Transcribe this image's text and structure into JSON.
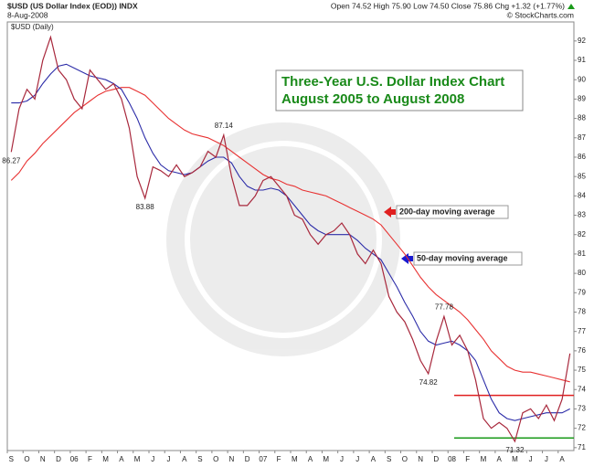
{
  "chart_data": {
    "type": "line",
    "header": {
      "symbol": "$USD (US Dollar Index (EOD)) INDX",
      "date": "8-Aug-2008",
      "quote": "Open 74.52  High 75.90  Low 74.50  Close 75.86  Chg +1.32 (+1.77%)",
      "credit": "© StockCharts.com"
    },
    "legend_label": "$USD (Daily)",
    "title": [
      "Three-Year U.S. Dollar Index Chart",
      "August 2005 to August 2008"
    ],
    "categories": [
      "S",
      null,
      "O",
      null,
      "N",
      null,
      "D",
      null,
      "06",
      null,
      "F",
      null,
      "M",
      null,
      "A",
      null,
      "M",
      null,
      "J",
      null,
      "J",
      null,
      "A",
      null,
      "S",
      null,
      "O",
      null,
      "N",
      null,
      "D",
      null,
      "07",
      null,
      "F",
      null,
      "M",
      null,
      "A",
      null,
      "M",
      null,
      "J",
      null,
      "J",
      null,
      "A",
      null,
      "S",
      null,
      "O",
      null,
      "N",
      null,
      "D",
      null,
      "08",
      null,
      "F",
      null,
      "M",
      null,
      "A",
      null,
      "M",
      null,
      "J",
      null,
      "J",
      null,
      "A",
      null
    ],
    "series": [
      {
        "name": "$USD",
        "color": "#a8283c",
        "values": [
          86.27,
          88.5,
          89.5,
          89.0,
          91.0,
          92.2,
          90.5,
          90.0,
          89.0,
          88.5,
          90.5,
          90.0,
          89.5,
          89.8,
          89.0,
          87.5,
          85.0,
          83.88,
          85.5,
          85.3,
          85.0,
          85.6,
          85.0,
          85.2,
          85.5,
          86.3,
          86.0,
          87.14,
          85.0,
          83.5,
          83.5,
          84.0,
          84.8,
          85.0,
          84.5,
          84.0,
          83.0,
          82.8,
          82.0,
          81.5,
          82.0,
          82.2,
          82.6,
          82.0,
          81.0,
          80.5,
          81.2,
          80.5,
          78.8,
          78.0,
          77.5,
          76.6,
          75.5,
          74.82,
          76.5,
          77.78,
          76.3,
          76.8,
          76.0,
          74.5,
          72.5,
          72.0,
          72.3,
          72.0,
          71.32,
          72.8,
          73.0,
          72.5,
          73.2,
          72.4,
          73.5,
          75.86
        ],
        "value_labels": [
          "86.27",
          null,
          null,
          null,
          null,
          null,
          null,
          null,
          null,
          null,
          null,
          null,
          null,
          null,
          null,
          null,
          null,
          "83.88",
          null,
          null,
          null,
          null,
          null,
          null,
          null,
          null,
          null,
          "87.14",
          null,
          null,
          null,
          null,
          null,
          null,
          null,
          null,
          null,
          null,
          null,
          null,
          null,
          null,
          null,
          null,
          null,
          null,
          null,
          null,
          null,
          null,
          null,
          null,
          null,
          "74.82",
          null,
          "77.78",
          null,
          null,
          null,
          null,
          null,
          null,
          null,
          null,
          "71.32",
          null,
          null,
          null,
          null,
          null,
          null,
          null
        ]
      },
      {
        "name": "50-day moving average",
        "color": "#2c2ca8",
        "values": [
          88.8,
          88.8,
          88.9,
          89.2,
          89.8,
          90.3,
          90.7,
          90.8,
          90.6,
          90.4,
          90.2,
          90.1,
          90.0,
          89.8,
          89.5,
          88.8,
          88.0,
          87.0,
          86.2,
          85.6,
          85.3,
          85.2,
          85.1,
          85.2,
          85.5,
          85.8,
          86.0,
          86.0,
          85.7,
          85.0,
          84.5,
          84.3,
          84.3,
          84.4,
          84.3,
          84.0,
          83.5,
          83.0,
          82.5,
          82.2,
          82.0,
          82.0,
          82.0,
          82.0,
          81.7,
          81.3,
          81.0,
          80.7,
          80.0,
          79.3,
          78.5,
          77.8,
          77.0,
          76.5,
          76.3,
          76.4,
          76.5,
          76.3,
          76.0,
          75.5,
          74.5,
          73.5,
          72.8,
          72.5,
          72.4,
          72.5,
          72.6,
          72.7,
          72.8,
          72.8,
          72.8,
          73.0
        ]
      },
      {
        "name": "200-day moving average",
        "color": "#e83232",
        "values": [
          84.8,
          85.2,
          85.8,
          86.2,
          86.7,
          87.1,
          87.5,
          87.9,
          88.3,
          88.6,
          88.9,
          89.2,
          89.4,
          89.5,
          89.6,
          89.6,
          89.4,
          89.2,
          88.8,
          88.4,
          88.0,
          87.7,
          87.4,
          87.2,
          87.1,
          87.0,
          86.8,
          86.6,
          86.3,
          86.0,
          85.7,
          85.4,
          85.1,
          84.9,
          84.8,
          84.6,
          84.5,
          84.3,
          84.2,
          84.1,
          84.0,
          83.8,
          83.6,
          83.4,
          83.2,
          83.0,
          82.8,
          82.5,
          82.0,
          81.5,
          81.0,
          80.4,
          79.8,
          79.3,
          78.9,
          78.6,
          78.3,
          78.0,
          77.6,
          77.1,
          76.6,
          76.0,
          75.6,
          75.2,
          75.0,
          74.9,
          74.9,
          74.8,
          74.7,
          74.6,
          74.5,
          74.4
        ]
      }
    ],
    "hlines": [
      {
        "value": 73.7,
        "color": "#e02020"
      },
      {
        "value": 71.5,
        "color": "#1a9a1a"
      }
    ],
    "annotations": [
      "200-day moving average",
      "50-day moving average"
    ],
    "ylim": [
      70.85,
      92.7
    ],
    "yticks": [
      71,
      72,
      73,
      74,
      75,
      76,
      77,
      78,
      79,
      80,
      81,
      82,
      83,
      84,
      85,
      86,
      87,
      88,
      89,
      90,
      91,
      92
    ],
    "grid": false
  }
}
